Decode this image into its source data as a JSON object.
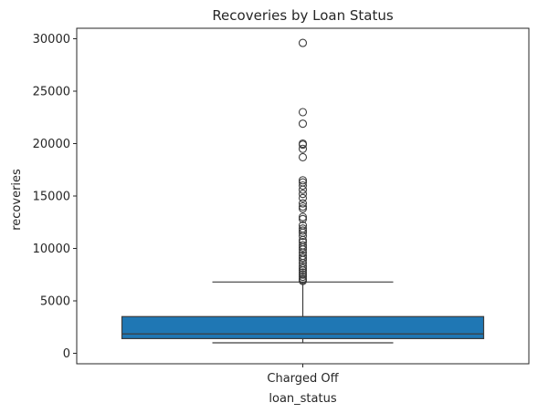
{
  "chart_data": {
    "type": "box",
    "title": "Recoveries by Loan Status",
    "xlabel": "loan_status",
    "ylabel": "recoveries",
    "categories": [
      "Charged Off"
    ],
    "ylim": [
      -1000,
      31000
    ],
    "yticks": [
      0,
      5000,
      10000,
      15000,
      20000,
      25000,
      30000
    ],
    "ytick_labels": [
      "0",
      "5000",
      "10000",
      "15000",
      "20000",
      "25000",
      "30000"
    ],
    "grid": false,
    "box_color": "#1f77b4",
    "line_color": "#3d3d3d",
    "boxes": [
      {
        "category": "Charged Off",
        "whisker_low": 1000,
        "q1": 1400,
        "median": 1850,
        "q3": 3500,
        "whisker_high": 6800,
        "outliers": [
          29600,
          23000,
          21900,
          20000,
          19900,
          19500,
          18700,
          16500,
          16300,
          16000,
          15600,
          15200,
          14800,
          14300,
          14000,
          13800,
          13000,
          12800,
          12200,
          11900,
          11700,
          11500,
          11200,
          10800,
          10600,
          10300,
          10100,
          9900,
          9600,
          9300,
          9100,
          8900,
          8600,
          8300,
          8100,
          7900,
          7700,
          7500,
          7300,
          7100,
          7000,
          6900
        ]
      }
    ]
  }
}
